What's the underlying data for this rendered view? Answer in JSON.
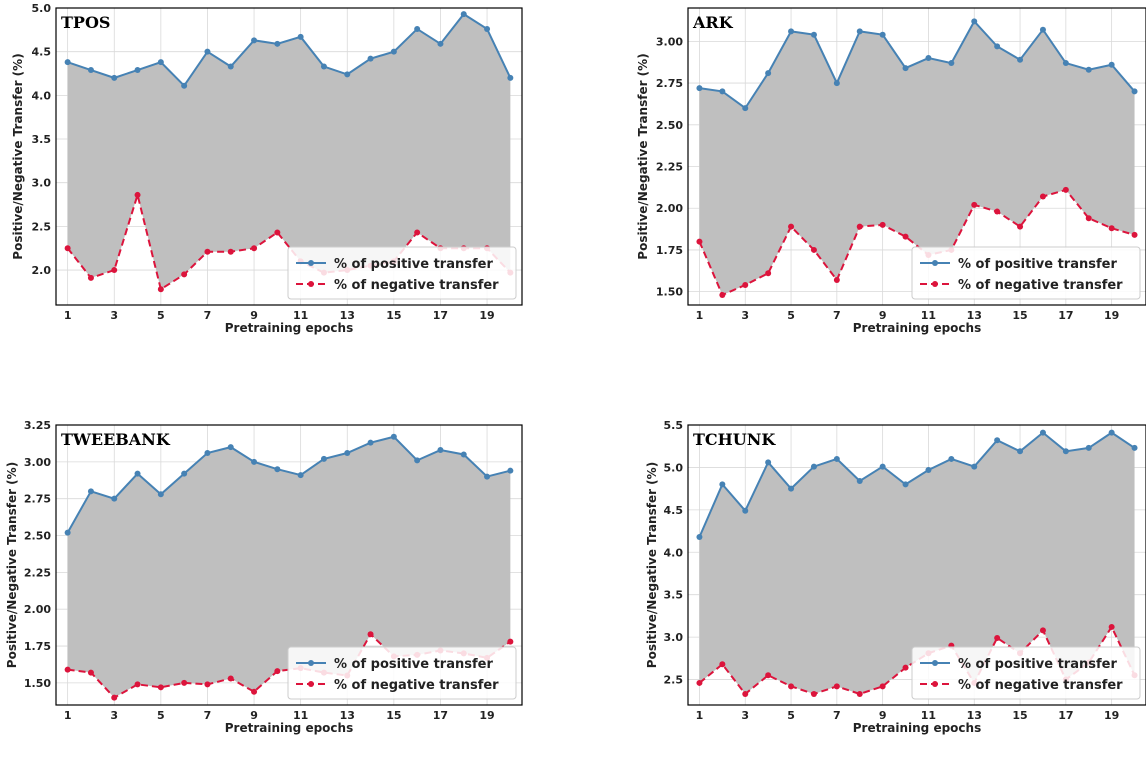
{
  "colors": {
    "positive": "#4682b4",
    "negative": "#dc143c",
    "fill": "#bfbfbf",
    "grid": "#d9d9d9"
  },
  "chart_data": [
    {
      "type": "line",
      "title": "TPOS",
      "xlabel": "Pretraining epochs",
      "ylabel": "Positive/Negative Transfer (%)",
      "x": [
        1,
        2,
        3,
        4,
        5,
        6,
        7,
        8,
        9,
        10,
        11,
        12,
        13,
        14,
        15,
        16,
        17,
        18,
        19,
        20
      ],
      "xticks": [
        1,
        3,
        5,
        7,
        9,
        11,
        13,
        15,
        17,
        19
      ],
      "ylim": [
        1.6,
        5.0
      ],
      "yticks": [
        2.0,
        2.5,
        3.0,
        3.5,
        4.0,
        4.5,
        5.0
      ],
      "ytick_labels": [
        "2.0",
        "2.5",
        "3.0",
        "3.5",
        "4.0",
        "4.5",
        "5.0"
      ],
      "grid": true,
      "fill_between": true,
      "legend_position": "lower-right",
      "series": [
        {
          "name": "% of positive transfer",
          "style": "solid",
          "values": [
            4.38,
            4.29,
            4.2,
            4.29,
            4.38,
            4.11,
            4.5,
            4.33,
            4.63,
            4.59,
            4.67,
            4.33,
            4.24,
            4.42,
            4.5,
            4.76,
            4.59,
            4.93,
            4.76,
            4.2
          ]
        },
        {
          "name": "% of negative transfer",
          "style": "dashed",
          "values": [
            2.25,
            1.91,
            2.0,
            2.86,
            1.78,
            1.95,
            2.21,
            2.21,
            2.25,
            2.43,
            2.1,
            1.97,
            2.0,
            2.05,
            2.1,
            2.43,
            2.25,
            2.25,
            2.25,
            1.97
          ]
        }
      ]
    },
    {
      "type": "line",
      "title": "ARK",
      "xlabel": "Pretraining epochs",
      "ylabel": "Positive/Negative Transfer (%)",
      "x": [
        1,
        2,
        3,
        4,
        5,
        6,
        7,
        8,
        9,
        10,
        11,
        12,
        13,
        14,
        15,
        16,
        17,
        18,
        19,
        20
      ],
      "xticks": [
        1,
        3,
        5,
        7,
        9,
        11,
        13,
        15,
        17,
        19
      ],
      "ylim": [
        1.42,
        3.2
      ],
      "yticks": [
        1.5,
        1.75,
        2.0,
        2.25,
        2.5,
        2.75,
        3.0
      ],
      "ytick_labels": [
        "1.50",
        "1.75",
        "2.00",
        "2.25",
        "2.50",
        "2.75",
        "3.00"
      ],
      "grid": true,
      "fill_between": true,
      "legend_position": "lower-right",
      "series": [
        {
          "name": "% of positive transfer",
          "style": "solid",
          "values": [
            2.72,
            2.7,
            2.6,
            2.81,
            3.06,
            3.04,
            2.75,
            3.06,
            3.04,
            2.84,
            2.9,
            2.87,
            3.12,
            2.97,
            2.89,
            3.07,
            2.87,
            2.83,
            2.86,
            2.7
          ]
        },
        {
          "name": "% of negative transfer",
          "style": "dashed",
          "values": [
            1.8,
            1.48,
            1.54,
            1.61,
            1.89,
            1.75,
            1.57,
            1.89,
            1.9,
            1.83,
            1.72,
            1.75,
            2.02,
            1.98,
            1.89,
            2.07,
            2.11,
            1.94,
            1.88,
            1.84
          ]
        }
      ]
    },
    {
      "type": "line",
      "title": "TWEEBANK",
      "xlabel": "Pretraining epochs",
      "ylabel": "Positive/Negative Transfer (%)",
      "x": [
        1,
        2,
        3,
        4,
        5,
        6,
        7,
        8,
        9,
        10,
        11,
        12,
        13,
        14,
        15,
        16,
        17,
        18,
        19,
        20
      ],
      "xticks": [
        1,
        3,
        5,
        7,
        9,
        11,
        13,
        15,
        17,
        19
      ],
      "ylim": [
        1.35,
        3.25
      ],
      "yticks": [
        1.5,
        1.75,
        2.0,
        2.25,
        2.5,
        2.75,
        3.0,
        3.25
      ],
      "ytick_labels": [
        "1.50",
        "1.75",
        "2.00",
        "2.25",
        "2.50",
        "2.75",
        "3.00",
        "3.25"
      ],
      "grid": true,
      "fill_between": true,
      "legend_position": "lower-right",
      "series": [
        {
          "name": "% of positive transfer",
          "style": "solid",
          "values": [
            2.52,
            2.8,
            2.75,
            2.92,
            2.78,
            2.92,
            3.06,
            3.1,
            3.0,
            2.95,
            2.91,
            3.02,
            3.06,
            3.13,
            3.17,
            3.01,
            3.08,
            3.05,
            2.9,
            2.94
          ]
        },
        {
          "name": "% of negative transfer",
          "style": "dashed",
          "values": [
            1.59,
            1.57,
            1.4,
            1.49,
            1.47,
            1.5,
            1.49,
            1.53,
            1.44,
            1.58,
            1.6,
            1.57,
            1.55,
            1.83,
            1.68,
            1.69,
            1.72,
            1.7,
            1.67,
            1.78
          ]
        }
      ]
    },
    {
      "type": "line",
      "title": "TCHUNK",
      "xlabel": "Pretraining epochs",
      "ylabel": "Positive/Negative Transfer (%)",
      "x": [
        1,
        2,
        3,
        4,
        5,
        6,
        7,
        8,
        9,
        10,
        11,
        12,
        13,
        14,
        15,
        16,
        17,
        18,
        19,
        20
      ],
      "xticks": [
        1,
        3,
        5,
        7,
        9,
        11,
        13,
        15,
        17,
        19
      ],
      "ylim": [
        2.2,
        5.5
      ],
      "yticks": [
        2.5,
        3.0,
        3.5,
        4.0,
        4.5,
        5.0,
        5.5
      ],
      "ytick_labels": [
        "2.5",
        "3.0",
        "3.5",
        "4.0",
        "4.5",
        "5.0",
        "5.5"
      ],
      "grid": true,
      "fill_between": true,
      "legend_position": "lower-right",
      "series": [
        {
          "name": "% of positive transfer",
          "style": "solid",
          "values": [
            4.18,
            4.8,
            4.49,
            5.06,
            4.75,
            5.01,
            5.1,
            4.84,
            5.01,
            4.8,
            4.97,
            5.1,
            5.01,
            5.32,
            5.19,
            5.41,
            5.19,
            5.23,
            5.41,
            5.23
          ]
        },
        {
          "name": "% of negative transfer",
          "style": "dashed",
          "values": [
            2.46,
            2.68,
            2.33,
            2.55,
            2.42,
            2.33,
            2.42,
            2.33,
            2.42,
            2.64,
            2.81,
            2.9,
            2.46,
            2.99,
            2.81,
            3.08,
            2.5,
            2.7,
            3.12,
            2.55
          ]
        }
      ]
    }
  ]
}
